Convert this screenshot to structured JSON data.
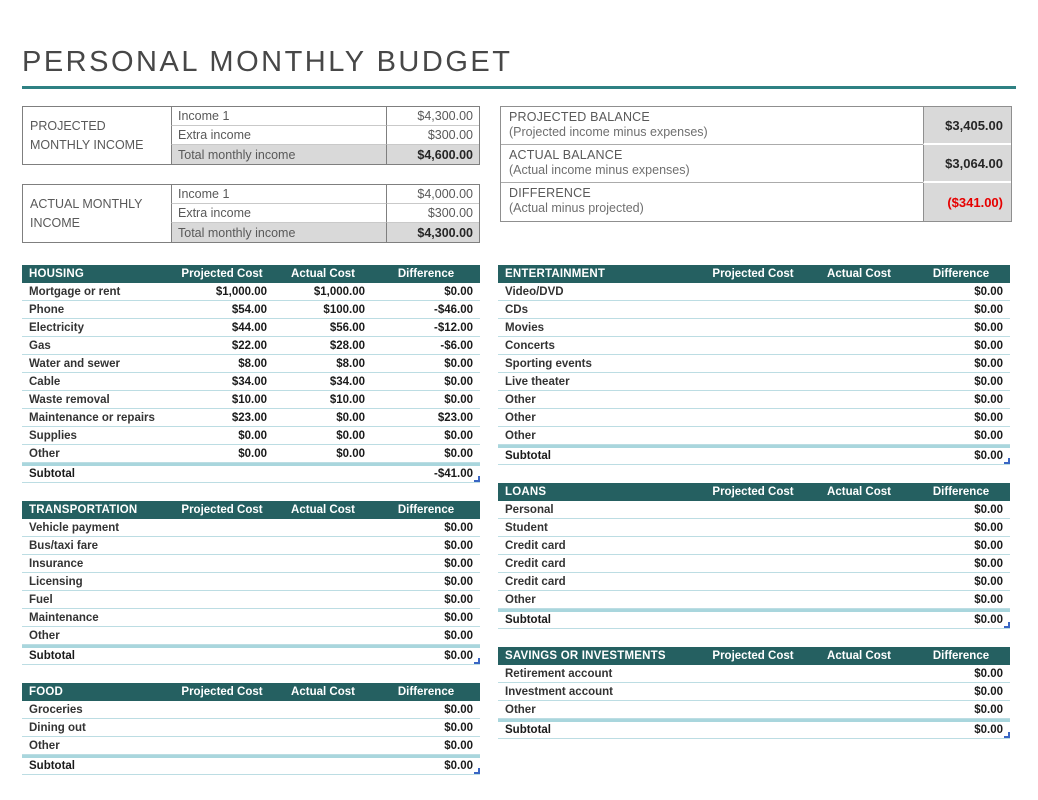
{
  "title": "PERSONAL MONTHLY BUDGET",
  "income": {
    "projected": {
      "label": "PROJECTED MONTHLY INCOME",
      "rows": [
        {
          "label": "Income 1",
          "value": "$4,300.00"
        },
        {
          "label": "Extra income",
          "value": "$300.00"
        }
      ],
      "total": {
        "label": "Total monthly income",
        "value": "$4,600.00"
      }
    },
    "actual": {
      "label": "ACTUAL MONTHLY INCOME",
      "rows": [
        {
          "label": "Income 1",
          "value": "$4,000.00"
        },
        {
          "label": "Extra income",
          "value": "$300.00"
        }
      ],
      "total": {
        "label": "Total monthly income",
        "value": "$4,300.00"
      }
    }
  },
  "balance": {
    "rows": [
      {
        "title": "PROJECTED BALANCE",
        "subtitle": "(Projected income minus expenses)",
        "value": "$3,405.00"
      },
      {
        "title": "ACTUAL BALANCE",
        "subtitle": "(Actual income minus expenses)",
        "value": "$3,064.00"
      },
      {
        "title": "DIFFERENCE",
        "subtitle": "(Actual minus projected)",
        "value": "($341.00)"
      }
    ]
  },
  "columns": [
    "Projected Cost",
    "Actual Cost",
    "Difference"
  ],
  "tables": {
    "housing": {
      "name": "HOUSING",
      "rows": [
        [
          "Mortgage or rent",
          "$1,000.00",
          "$1,000.00",
          "$0.00"
        ],
        [
          "Phone",
          "$54.00",
          "$100.00",
          "-$46.00"
        ],
        [
          "Electricity",
          "$44.00",
          "$56.00",
          "-$12.00"
        ],
        [
          "Gas",
          "$22.00",
          "$28.00",
          "-$6.00"
        ],
        [
          "Water and sewer",
          "$8.00",
          "$8.00",
          "$0.00"
        ],
        [
          "Cable",
          "$34.00",
          "$34.00",
          "$0.00"
        ],
        [
          "Waste removal",
          "$10.00",
          "$10.00",
          "$0.00"
        ],
        [
          "Maintenance or repairs",
          "$23.00",
          "$0.00",
          "$23.00"
        ],
        [
          "Supplies",
          "$0.00",
          "$0.00",
          "$0.00"
        ],
        [
          "Other",
          "$0.00",
          "$0.00",
          "$0.00"
        ]
      ],
      "subtotal": [
        "Subtotal",
        "",
        "",
        "-$41.00"
      ]
    },
    "transportation": {
      "name": "TRANSPORTATION",
      "rows": [
        [
          "Vehicle payment",
          "",
          "",
          "$0.00"
        ],
        [
          "Bus/taxi fare",
          "",
          "",
          "$0.00"
        ],
        [
          "Insurance",
          "",
          "",
          "$0.00"
        ],
        [
          "Licensing",
          "",
          "",
          "$0.00"
        ],
        [
          "Fuel",
          "",
          "",
          "$0.00"
        ],
        [
          "Maintenance",
          "",
          "",
          "$0.00"
        ],
        [
          "Other",
          "",
          "",
          "$0.00"
        ]
      ],
      "subtotal": [
        "Subtotal",
        "",
        "",
        "$0.00"
      ]
    },
    "food": {
      "name": "FOOD",
      "rows": [
        [
          "Groceries",
          "",
          "",
          "$0.00"
        ],
        [
          "Dining out",
          "",
          "",
          "$0.00"
        ],
        [
          "Other",
          "",
          "",
          "$0.00"
        ]
      ],
      "subtotal": [
        "Subtotal",
        "",
        "",
        "$0.00"
      ]
    },
    "entertainment": {
      "name": "ENTERTAINMENT",
      "rows": [
        [
          "Video/DVD",
          "",
          "",
          "$0.00"
        ],
        [
          "CDs",
          "",
          "",
          "$0.00"
        ],
        [
          "Movies",
          "",
          "",
          "$0.00"
        ],
        [
          "Concerts",
          "",
          "",
          "$0.00"
        ],
        [
          "Sporting events",
          "",
          "",
          "$0.00"
        ],
        [
          "Live theater",
          "",
          "",
          "$0.00"
        ],
        [
          "Other",
          "",
          "",
          "$0.00"
        ],
        [
          "Other",
          "",
          "",
          "$0.00"
        ],
        [
          "Other",
          "",
          "",
          "$0.00"
        ]
      ],
      "subtotal": [
        "Subtotal",
        "",
        "",
        "$0.00"
      ]
    },
    "loans": {
      "name": "LOANS",
      "rows": [
        [
          "Personal",
          "",
          "",
          "$0.00"
        ],
        [
          "Student",
          "",
          "",
          "$0.00"
        ],
        [
          "Credit card",
          "",
          "",
          "$0.00"
        ],
        [
          "Credit card",
          "",
          "",
          "$0.00"
        ],
        [
          "Credit card",
          "",
          "",
          "$0.00"
        ],
        [
          "Other",
          "",
          "",
          "$0.00"
        ]
      ],
      "subtotal": [
        "Subtotal",
        "",
        "",
        "$0.00"
      ]
    },
    "savings": {
      "name": "SAVINGS OR INVESTMENTS",
      "rows": [
        [
          "Retirement account",
          "",
          "",
          "$0.00"
        ],
        [
          "Investment account",
          "",
          "",
          "$0.00"
        ],
        [
          "Other",
          "",
          "",
          "$0.00"
        ]
      ],
      "subtotal": [
        "Subtotal",
        "",
        "",
        "$0.00"
      ]
    }
  },
  "icons": {
    "table_resize_handle": "corner-angle"
  },
  "colors": {
    "header_teal": "#256061",
    "title_rule_teal": "#2f8183",
    "row_rule_teal": "#bcdde3",
    "subtotal_band_teal": "#a9d6dd",
    "total_cell_gray": "#d9d9d9",
    "negative_red": "#e60000",
    "resize_handle_blue": "#3a66c4"
  }
}
